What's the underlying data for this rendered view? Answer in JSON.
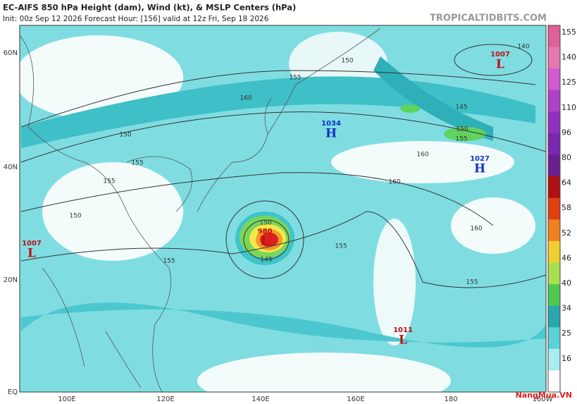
{
  "header": {
    "title": "EC-AIFS 850 hPa Height (dam), Wind (kt), & MSLP Centers (hPa)",
    "subtitle": "Init: 00z Sep 12 2026   Forecast Hour: [156]   valid at 12z Fri, Sep 18 2026",
    "credit": "TROPICALTIDBITS.COM"
  },
  "axes": {
    "latitudes": [
      "60N",
      "40N",
      "20N",
      "EQ"
    ],
    "longitudes": [
      "100E",
      "120E",
      "140E",
      "160E",
      "180",
      "160W"
    ]
  },
  "colorbar": {
    "labels": [
      155,
      140,
      125,
      110,
      96,
      80,
      64,
      58,
      52,
      46,
      40,
      34,
      25,
      16
    ]
  },
  "centers": [
    {
      "type": "L",
      "pressure": 1007
    },
    {
      "type": "H",
      "pressure": 1034
    },
    {
      "type": "H",
      "pressure": 1027
    },
    {
      "type": "L",
      "pressure": 1007
    },
    {
      "type": "L",
      "pressure": 980
    },
    {
      "type": "L",
      "pressure": 1011
    }
  ],
  "contour_labels": [
    140,
    150,
    155,
    160,
    150,
    155,
    150,
    155,
    155,
    160,
    160,
    155,
    145,
    150,
    145,
    160,
    155,
    150,
    155
  ],
  "watermark": "NangMua.VN"
}
